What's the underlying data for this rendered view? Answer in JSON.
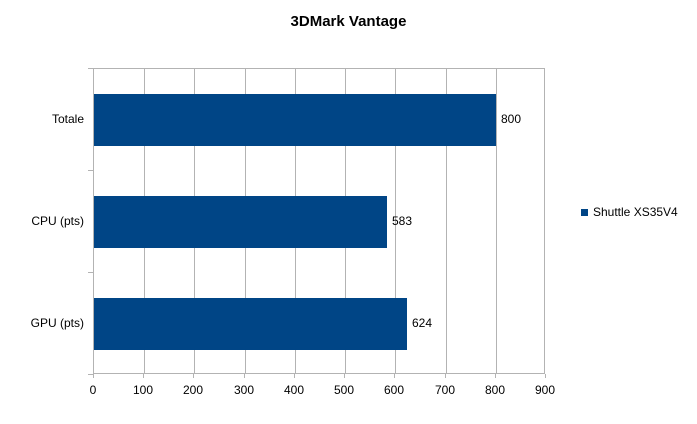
{
  "title": "3DMark Vantage",
  "legend": {
    "position": "right",
    "items": [
      {
        "label": "Shuttle XS35V4",
        "color": "#004586"
      }
    ]
  },
  "chart_data": {
    "type": "bar",
    "orientation": "horizontal",
    "title": "3DMark Vantage",
    "categories": [
      "Totale",
      "CPU (pts)",
      "GPU (pts)"
    ],
    "series": [
      {
        "name": "Shuttle XS35V4",
        "values": [
          800,
          583,
          624
        ],
        "color": "#004586"
      }
    ],
    "xlim": [
      0,
      900
    ],
    "xticks": [
      0,
      100,
      200,
      300,
      400,
      500,
      600,
      700,
      800,
      900
    ],
    "xlabel": "",
    "ylabel": "",
    "grid": "vertical",
    "value_labels": true,
    "legend_position": "right"
  },
  "colors": {
    "bar": "#004586",
    "grid": "#b3b3b3",
    "axis_frame": "#b3b3b3",
    "text": "#000000",
    "background": "#ffffff"
  }
}
